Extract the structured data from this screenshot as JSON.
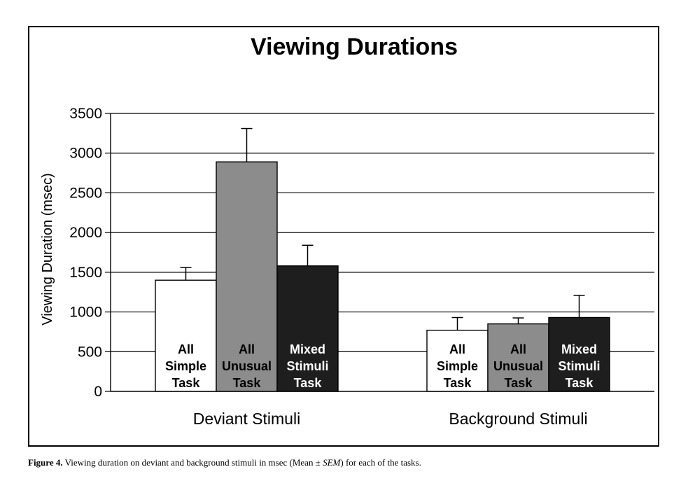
{
  "chart_data": {
    "type": "bar",
    "title": "Viewing Durations",
    "ylabel": "Viewing Duration (msec)",
    "xlabel": "",
    "ylim": [
      0,
      3500
    ],
    "yticks": [
      "0",
      "500",
      "1000",
      "1500",
      "2000",
      "2500",
      "3000",
      "3500"
    ],
    "ytick_values": [
      0,
      500,
      1000,
      1500,
      2000,
      2500,
      3000,
      3500
    ],
    "grid": true,
    "categories": [
      "Deviant Stimuli",
      "Background Stimuli"
    ],
    "series": [
      {
        "name": "All Simple Task",
        "label_lines": [
          "All",
          "Simple",
          "Task"
        ],
        "color": "#ffffff",
        "label_color": "#000000",
        "values": [
          1400,
          770
        ],
        "errors": [
          160,
          160
        ]
      },
      {
        "name": "All Unusual Task",
        "label_lines": [
          "All",
          "Unusual",
          "Task"
        ],
        "color": "#8c8c8c",
        "label_color": "#000000",
        "values": [
          2890,
          850
        ],
        "errors": [
          420,
          75
        ]
      },
      {
        "name": "Mixed Stimuli Task",
        "label_lines": [
          "Mixed",
          "Stimuli",
          "Task"
        ],
        "color": "#1e1e1e",
        "label_color": "#ffffff",
        "values": [
          1580,
          930
        ],
        "errors": [
          260,
          280
        ]
      }
    ]
  },
  "caption": {
    "label": "Figure 4.",
    "text_before": " Viewing duration on deviant and background stimuli in msec (Mean ± ",
    "sem": "SEM",
    "text_after": ") for each of the tasks."
  }
}
